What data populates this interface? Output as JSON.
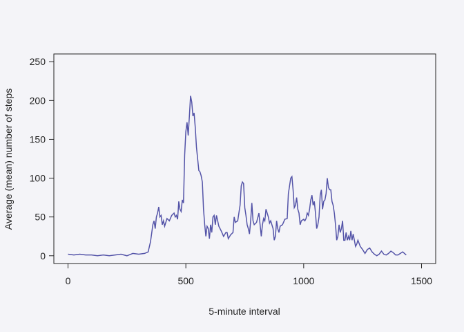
{
  "chart_data": {
    "type": "line",
    "x_label": "5-minute interval",
    "y_label": "Average (mean) number of steps",
    "xlim": [
      -60,
      1560
    ],
    "ylim": [
      -10,
      260
    ],
    "xticks": [
      0,
      500,
      1000,
      1500
    ],
    "yticks": [
      0,
      50,
      100,
      150,
      200,
      250
    ],
    "x": [
      0,
      25,
      50,
      75,
      100,
      125,
      150,
      175,
      200,
      225,
      250,
      275,
      300,
      325,
      340,
      350,
      360,
      365,
      370,
      375,
      380,
      385,
      390,
      395,
      400,
      405,
      410,
      420,
      430,
      440,
      450,
      455,
      460,
      465,
      470,
      475,
      480,
      485,
      490,
      495,
      500,
      505,
      510,
      515,
      520,
      525,
      530,
      535,
      540,
      545,
      550,
      555,
      560,
      565,
      570,
      575,
      580,
      585,
      590,
      595,
      600,
      605,
      610,
      615,
      620,
      625,
      630,
      635,
      640,
      650,
      660,
      670,
      675,
      680,
      690,
      700,
      705,
      710,
      720,
      725,
      730,
      735,
      740,
      745,
      750,
      755,
      760,
      765,
      770,
      775,
      780,
      785,
      790,
      800,
      810,
      815,
      820,
      825,
      830,
      835,
      840,
      845,
      850,
      855,
      860,
      870,
      875,
      880,
      885,
      890,
      895,
      900,
      910,
      920,
      930,
      935,
      940,
      945,
      950,
      955,
      960,
      965,
      970,
      975,
      980,
      985,
      990,
      1000,
      1005,
      1010,
      1015,
      1020,
      1025,
      1030,
      1035,
      1040,
      1045,
      1050,
      1055,
      1060,
      1065,
      1070,
      1075,
      1080,
      1085,
      1090,
      1095,
      1100,
      1105,
      1110,
      1115,
      1120,
      1125,
      1130,
      1135,
      1140,
      1145,
      1150,
      1155,
      1160,
      1165,
      1170,
      1175,
      1180,
      1185,
      1190,
      1195,
      1200,
      1205,
      1210,
      1215,
      1220,
      1225,
      1230,
      1240,
      1250,
      1260,
      1270,
      1280,
      1290,
      1300,
      1310,
      1320,
      1330,
      1340,
      1350,
      1360,
      1370,
      1380,
      1390,
      1400,
      1410,
      1420,
      1435
    ],
    "series": [
      {
        "color": "#5454a8",
        "values": [
          2,
          1,
          2,
          1,
          1,
          0,
          1,
          0,
          1,
          2,
          0,
          3,
          2,
          3,
          5,
          18,
          40,
          45,
          35,
          50,
          55,
          63,
          50,
          52,
          40,
          45,
          38,
          48,
          45,
          52,
          55,
          50,
          52,
          47,
          70,
          60,
          57,
          72,
          68,
          130,
          160,
          172,
          155,
          180,
          206,
          198,
          180,
          184,
          165,
          140,
          125,
          110,
          108,
          103,
          95,
          60,
          40,
          25,
          38,
          35,
          22,
          40,
          30,
          50,
          52,
          40,
          52,
          45,
          38,
          32,
          25,
          30,
          30,
          22,
          27,
          30,
          50,
          43,
          45,
          55,
          65,
          90,
          95,
          93,
          62,
          52,
          40,
          35,
          28,
          45,
          68,
          45,
          40,
          43,
          55,
          40,
          25,
          40,
          48,
          45,
          60,
          55,
          50,
          42,
          45,
          35,
          20,
          25,
          45,
          35,
          30,
          38,
          40,
          47,
          48,
          80,
          90,
          100,
          102,
          85,
          62,
          65,
          75,
          60,
          55,
          40,
          45,
          47,
          45,
          48,
          55,
          52,
          60,
          72,
          78,
          65,
          70,
          55,
          35,
          40,
          50,
          78,
          85,
          60,
          70,
          72,
          80,
          100,
          88,
          85,
          85,
          70,
          65,
          55,
          40,
          20,
          25,
          40,
          30,
          35,
          45,
          20,
          20,
          30,
          20,
          25,
          20,
          32,
          20,
          28,
          20,
          12,
          15,
          20,
          12,
          8,
          3,
          8,
          10,
          5,
          2,
          0,
          2,
          6,
          2,
          1,
          3,
          6,
          4,
          1,
          1,
          3,
          5,
          1
        ]
      }
    ]
  }
}
